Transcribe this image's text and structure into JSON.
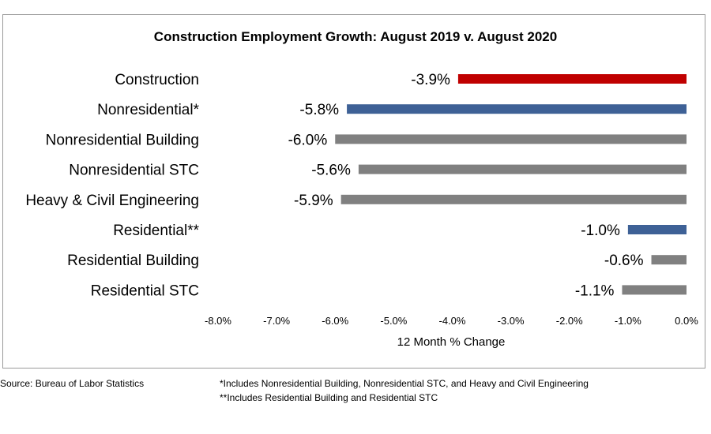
{
  "chart_data": {
    "type": "bar",
    "orientation": "horizontal",
    "title": "Construction Employment Growth: August 2019 v. August 2020",
    "xlabel": "12 Month % Change",
    "ylabel": "",
    "xlim": [
      -8.0,
      0.0
    ],
    "x_ticks": [
      "-8.0%",
      "-7.0%",
      "-6.0%",
      "-5.0%",
      "-4.0%",
      "-3.0%",
      "-2.0%",
      "-1.0%",
      "0.0%"
    ],
    "grid": false,
    "legend": "none",
    "categories": [
      "Construction",
      "Nonresidential*",
      "Nonresidential Building",
      "Nonresidential STC",
      "Heavy & Civil Engineering",
      "Residential**",
      "Residential Building",
      "Residential STC"
    ],
    "values": [
      -3.9,
      -5.8,
      -6.0,
      -5.6,
      -5.9,
      -1.0,
      -0.6,
      -1.1
    ],
    "data_labels": [
      "-3.9%",
      "-5.8%",
      "-6.0%",
      "-5.6%",
      "-5.9%",
      "-1.0%",
      "-0.6%",
      "-1.1%"
    ],
    "bar_colors": [
      "#c00000",
      "#3e6196",
      "#808080",
      "#808080",
      "#808080",
      "#3e6196",
      "#808080",
      "#808080"
    ]
  },
  "footer": {
    "source": "Source:  Bureau of Labor Statistics",
    "note1": "*Includes Nonresidential Building, Nonresidential STC, and Heavy and Civil Engineering",
    "note2": "**Includes Residential Building and Residential STC"
  }
}
